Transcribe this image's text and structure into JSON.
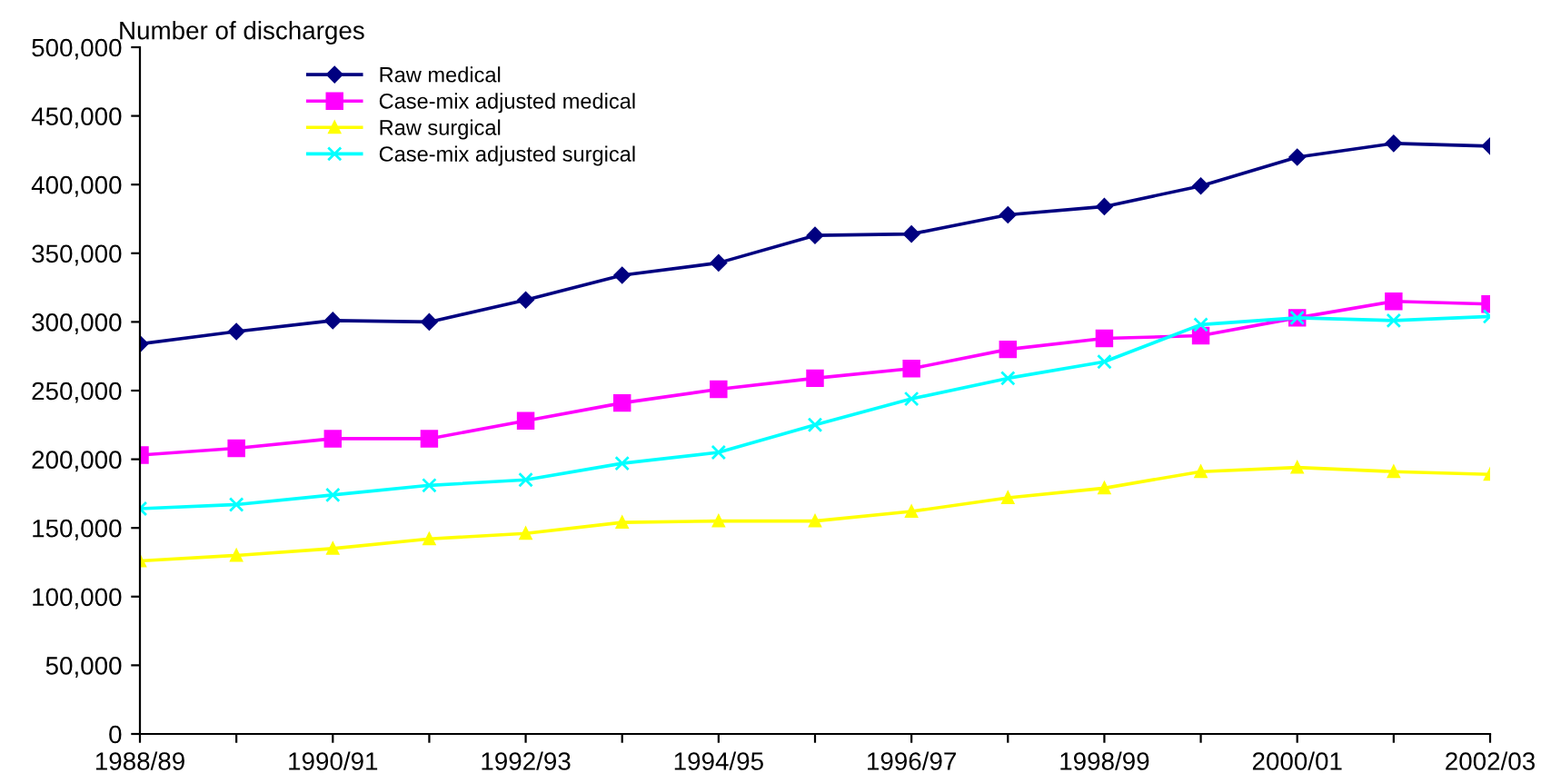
{
  "chart_data": {
    "type": "line",
    "ylabel": "Number of discharges",
    "categories": [
      "1988/89",
      null,
      "1990/91",
      null,
      "1992/93",
      null,
      "1994/95",
      null,
      "1996/97",
      null,
      "1998/99",
      null,
      "2000/01",
      null,
      "2002/03"
    ],
    "series": [
      {
        "name": "Raw medical",
        "color": "#000080",
        "marker": "diamond",
        "values": [
          284000,
          293000,
          301000,
          300000,
          316000,
          334000,
          343000,
          363000,
          364000,
          378000,
          384000,
          399000,
          420000,
          430000,
          428000
        ]
      },
      {
        "name": "Case-mix adjusted medical",
        "color": "#ff00ff",
        "marker": "square",
        "values": [
          203000,
          208000,
          215000,
          215000,
          228000,
          241000,
          251000,
          259000,
          266000,
          280000,
          288000,
          290000,
          303000,
          315000,
          313000
        ]
      },
      {
        "name": "Raw surgical",
        "color": "#ffff00",
        "marker": "triangle",
        "values": [
          126000,
          130000,
          135000,
          142000,
          146000,
          154000,
          155000,
          155000,
          162000,
          172000,
          179000,
          191000,
          194000,
          191000,
          189000
        ]
      },
      {
        "name": "Case-mix adjusted surgical",
        "color": "#00ffff",
        "marker": "cross",
        "values": [
          164000,
          167000,
          174000,
          181000,
          185000,
          197000,
          205000,
          225000,
          244000,
          259000,
          271000,
          298000,
          303000,
          301000,
          304000
        ]
      }
    ],
    "ylim": [
      0,
      500000
    ],
    "yticks": [
      0,
      {
        "value": 50000,
        "label": "50,000"
      },
      {
        "value": 100000,
        "label": "100,000"
      },
      {
        "value": 150000,
        "label": "150,000"
      },
      {
        "value": 200000,
        "label": "200,000"
      },
      {
        "value": 250000,
        "label": "250,000"
      },
      {
        "value": 300000,
        "label": "300,000"
      },
      {
        "value": 350000,
        "label": "350,000"
      },
      {
        "value": 400000,
        "label": "400,000"
      },
      {
        "value": 450000,
        "label": "450,000"
      },
      {
        "value": 500000,
        "label": "500,000"
      }
    ],
    "grid": false,
    "legend": "top left",
    "line_style": "solid"
  }
}
